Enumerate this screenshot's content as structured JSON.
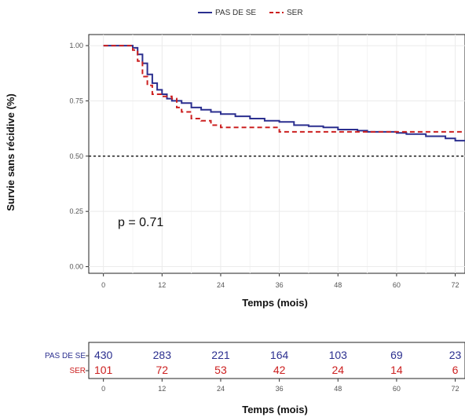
{
  "chart_data": {
    "type": "line",
    "title": "",
    "xlabel": "Temps (mois)",
    "ylabel": "Survie sans récidive (%)",
    "xlim": [
      -3,
      74
    ],
    "ylim": [
      -0.03,
      1.05
    ],
    "x_ticks": [
      0,
      12,
      24,
      36,
      48,
      60,
      72
    ],
    "x_tick_labels": [
      "0",
      "12",
      "24",
      "36",
      "48",
      "60",
      "72"
    ],
    "y_ticks": [
      0,
      0.25,
      0.5,
      0.75,
      1
    ],
    "y_tick_labels": [
      "0.00",
      "0.25",
      "0.50",
      "0.75",
      "1.00"
    ],
    "grid": true,
    "legend_position": "top",
    "reference_line": {
      "y": 0.5,
      "style": "dotted",
      "color": "#333333"
    },
    "annotation": "p = 0.71",
    "series": [
      {
        "name": "PAS DE SE",
        "color": "#2b2f8f",
        "line_style": "solid",
        "points": [
          [
            0,
            1.0
          ],
          [
            5,
            1.0
          ],
          [
            6,
            0.99
          ],
          [
            7,
            0.96
          ],
          [
            8,
            0.92
          ],
          [
            9,
            0.87
          ],
          [
            10,
            0.83
          ],
          [
            11,
            0.8
          ],
          [
            12,
            0.78
          ],
          [
            13,
            0.76
          ],
          [
            14,
            0.75
          ],
          [
            16,
            0.74
          ],
          [
            18,
            0.72
          ],
          [
            20,
            0.71
          ],
          [
            22,
            0.7
          ],
          [
            24,
            0.69
          ],
          [
            27,
            0.68
          ],
          [
            30,
            0.67
          ],
          [
            33,
            0.66
          ],
          [
            36,
            0.655
          ],
          [
            39,
            0.64
          ],
          [
            42,
            0.635
          ],
          [
            45,
            0.63
          ],
          [
            48,
            0.62
          ],
          [
            52,
            0.615
          ],
          [
            54,
            0.61
          ],
          [
            60,
            0.605
          ],
          [
            62,
            0.6
          ],
          [
            66,
            0.59
          ],
          [
            70,
            0.58
          ],
          [
            72,
            0.57
          ],
          [
            74,
            0.57
          ]
        ]
      },
      {
        "name": "SER",
        "color": "#cc2020",
        "line_style": "dashed",
        "points": [
          [
            0,
            1.0
          ],
          [
            5,
            1.0
          ],
          [
            6,
            0.98
          ],
          [
            7,
            0.93
          ],
          [
            8,
            0.86
          ],
          [
            9,
            0.82
          ],
          [
            10,
            0.78
          ],
          [
            12,
            0.77
          ],
          [
            14,
            0.76
          ],
          [
            15,
            0.72
          ],
          [
            16,
            0.7
          ],
          [
            18,
            0.67
          ],
          [
            20,
            0.66
          ],
          [
            22,
            0.64
          ],
          [
            24,
            0.63
          ],
          [
            34,
            0.63
          ],
          [
            36,
            0.61
          ],
          [
            44,
            0.61
          ],
          [
            48,
            0.61
          ],
          [
            52,
            0.61
          ],
          [
            60,
            0.61
          ],
          [
            74,
            0.61
          ]
        ]
      }
    ]
  },
  "risk_table": {
    "xlabel": "Temps (mois)",
    "x_ticks": [
      0,
      12,
      24,
      36,
      48,
      60,
      72
    ],
    "x_tick_labels": [
      "0",
      "12",
      "24",
      "36",
      "48",
      "60",
      "72"
    ],
    "rows": [
      {
        "label": "PAS DE SE",
        "color": "#2b2f8f",
        "counts": [
          "430",
          "283",
          "221",
          "164",
          "103",
          "69",
          "23"
        ]
      },
      {
        "label": "SER",
        "color": "#cc2020",
        "counts": [
          "101",
          "72",
          "53",
          "42",
          "24",
          "14",
          "6"
        ]
      }
    ]
  }
}
